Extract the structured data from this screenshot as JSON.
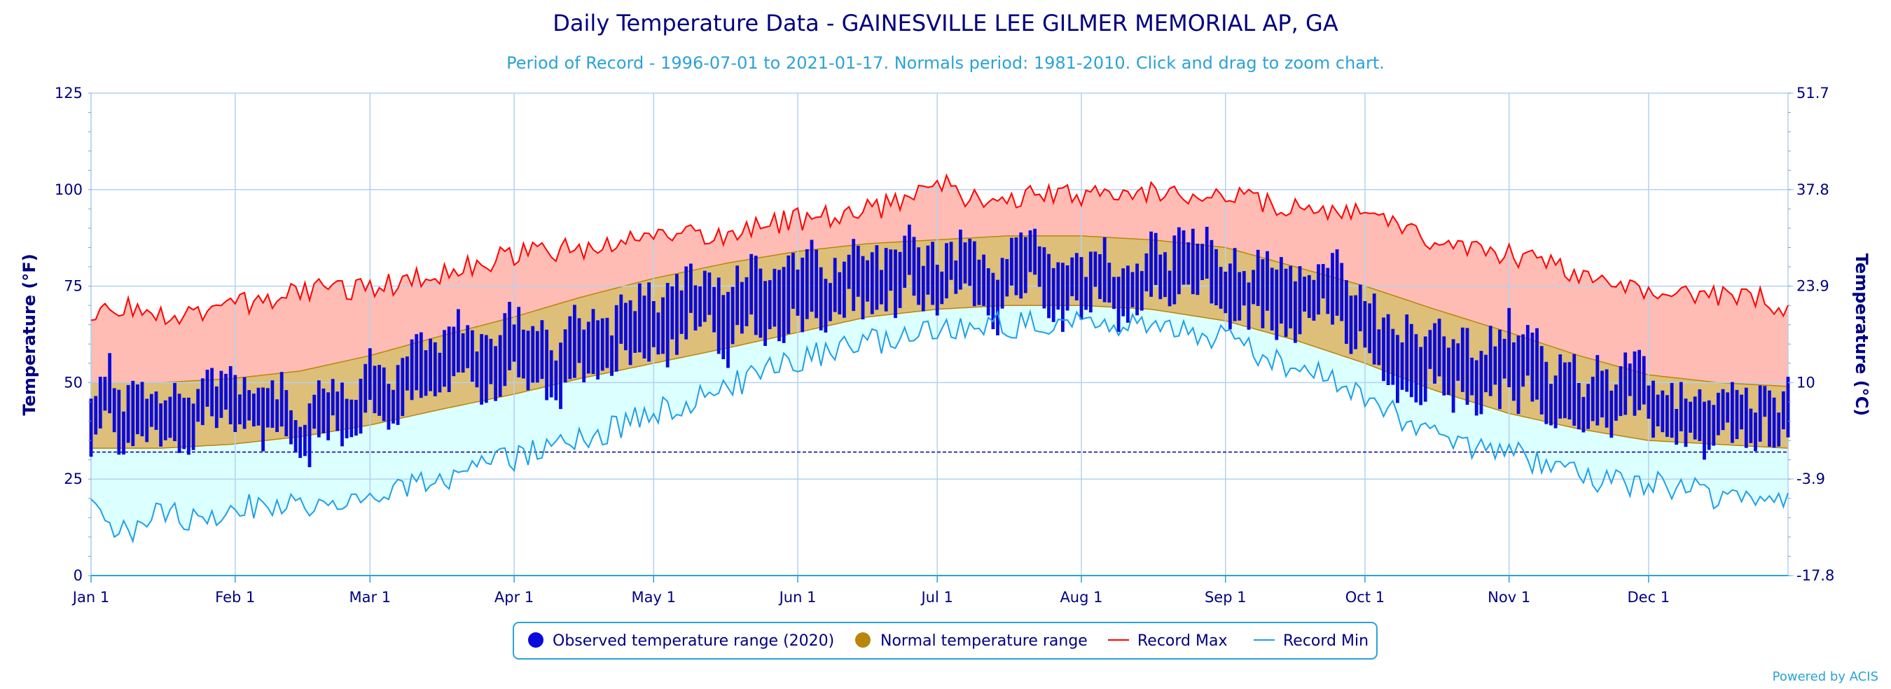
{
  "chart_data": {
    "type": "area",
    "title": "Daily Temperature Data - GAINESVILLE LEE GILMER MEMORIAL AP, GA",
    "subtitle": "Period of Record - 1996-07-01 to 2021-01-17. Normals period: 1981-2010. Click and drag to zoom chart.",
    "ylabel": "Temperature (°F)",
    "ylabel_right": "Temperature (°C)",
    "ylim": [
      0,
      125
    ],
    "yticks": [
      0,
      25,
      50,
      75,
      100,
      125
    ],
    "yticks_right": [
      "-17.8",
      "-3.9",
      "10",
      "23.9",
      "37.8",
      "51.7"
    ],
    "freezing_line": 32,
    "x_days": 366,
    "month_labels": [
      {
        "label": "Jan 1",
        "day": 0
      },
      {
        "label": "Feb 1",
        "day": 31
      },
      {
        "label": "Mar 1",
        "day": 60
      },
      {
        "label": "Apr 1",
        "day": 91
      },
      {
        "label": "May 1",
        "day": 121
      },
      {
        "label": "Jun 1",
        "day": 152
      },
      {
        "label": "Jul 1",
        "day": 182
      },
      {
        "label": "Aug 1",
        "day": 213
      },
      {
        "label": "Sep 1",
        "day": 244
      },
      {
        "label": "Oct 1",
        "day": 274
      },
      {
        "label": "Nov 1",
        "day": 305
      },
      {
        "label": "Dec 1",
        "day": 335
      }
    ],
    "grid": true,
    "legend_position": "bottom-center",
    "colors": {
      "observed": "#0a0adc",
      "normal_fill": "#ddbf7a",
      "normal_edge": "#b8860b",
      "record_max_line": "#ff0000",
      "record_max_fill": "#ffbcb4",
      "record_min_line": "#1ea0e6",
      "record_min_fill": "#dcffff",
      "grid": "#b4d2f0",
      "axis_text": "#000080",
      "subtitle": "#2aa2d8",
      "freezing": "#00008b"
    },
    "series": [
      {
        "name": "Record Max",
        "points": [
          [
            0,
            67
          ],
          [
            8,
            70
          ],
          [
            15,
            68
          ],
          [
            22,
            67
          ],
          [
            30,
            70
          ],
          [
            36,
            71
          ],
          [
            44,
            73
          ],
          [
            52,
            75
          ],
          [
            60,
            74
          ],
          [
            70,
            77
          ],
          [
            80,
            80
          ],
          [
            90,
            83
          ],
          [
            100,
            84
          ],
          [
            112,
            86
          ],
          [
            121,
            88
          ],
          [
            135,
            88
          ],
          [
            150,
            92
          ],
          [
            165,
            94
          ],
          [
            175,
            97
          ],
          [
            182,
            104
          ],
          [
            187,
            97
          ],
          [
            200,
            98
          ],
          [
            215,
            99
          ],
          [
            225,
            100
          ],
          [
            235,
            99
          ],
          [
            245,
            98
          ],
          [
            255,
            96
          ],
          [
            265,
            94
          ],
          [
            275,
            94
          ],
          [
            282,
            90
          ],
          [
            290,
            85
          ],
          [
            300,
            84
          ],
          [
            310,
            82
          ],
          [
            320,
            78
          ],
          [
            330,
            75
          ],
          [
            340,
            74
          ],
          [
            350,
            72
          ],
          [
            360,
            72
          ],
          [
            365,
            68
          ]
        ]
      },
      {
        "name": "Record Min",
        "points": [
          [
            0,
            18
          ],
          [
            8,
            10
          ],
          [
            15,
            17
          ],
          [
            22,
            14
          ],
          [
            30,
            17
          ],
          [
            36,
            18
          ],
          [
            44,
            18
          ],
          [
            52,
            20
          ],
          [
            60,
            21
          ],
          [
            70,
            23
          ],
          [
            80,
            27
          ],
          [
            90,
            30
          ],
          [
            100,
            34
          ],
          [
            112,
            38
          ],
          [
            121,
            42
          ],
          [
            135,
            48
          ],
          [
            150,
            55
          ],
          [
            165,
            60
          ],
          [
            175,
            62
          ],
          [
            182,
            64
          ],
          [
            195,
            65
          ],
          [
            215,
            65
          ],
          [
            230,
            64
          ],
          [
            245,
            61
          ],
          [
            255,
            55
          ],
          [
            265,
            52
          ],
          [
            275,
            46
          ],
          [
            285,
            38
          ],
          [
            295,
            34
          ],
          [
            305,
            32
          ],
          [
            315,
            28
          ],
          [
            325,
            24
          ],
          [
            335,
            24
          ],
          [
            345,
            22
          ],
          [
            355,
            19
          ],
          [
            365,
            18
          ]
        ]
      },
      {
        "name": "Normal High",
        "points": [
          [
            0,
            50
          ],
          [
            15,
            50
          ],
          [
            30,
            51
          ],
          [
            45,
            53
          ],
          [
            60,
            57
          ],
          [
            75,
            62
          ],
          [
            91,
            67
          ],
          [
            105,
            72
          ],
          [
            121,
            77
          ],
          [
            137,
            81
          ],
          [
            152,
            84
          ],
          [
            167,
            86
          ],
          [
            182,
            87
          ],
          [
            197,
            88
          ],
          [
            213,
            88
          ],
          [
            228,
            87
          ],
          [
            244,
            85
          ],
          [
            259,
            80
          ],
          [
            274,
            75
          ],
          [
            289,
            69
          ],
          [
            305,
            63
          ],
          [
            320,
            57
          ],
          [
            335,
            52
          ],
          [
            350,
            50
          ],
          [
            365,
            49
          ]
        ]
      },
      {
        "name": "Normal Low",
        "points": [
          [
            0,
            33
          ],
          [
            15,
            33
          ],
          [
            30,
            34
          ],
          [
            45,
            36
          ],
          [
            60,
            39
          ],
          [
            75,
            43
          ],
          [
            91,
            47
          ],
          [
            105,
            51
          ],
          [
            121,
            55
          ],
          [
            137,
            59
          ],
          [
            152,
            63
          ],
          [
            167,
            67
          ],
          [
            182,
            69
          ],
          [
            197,
            70
          ],
          [
            213,
            70
          ],
          [
            228,
            69
          ],
          [
            244,
            66
          ],
          [
            259,
            61
          ],
          [
            274,
            55
          ],
          [
            289,
            48
          ],
          [
            305,
            42
          ],
          [
            320,
            38
          ],
          [
            335,
            35
          ],
          [
            350,
            34
          ],
          [
            365,
            33
          ]
        ]
      },
      {
        "name": "Observed temperature range (2020)",
        "values_from": "normal_range_with_daily_variation"
      }
    ]
  },
  "legend": {
    "observed": "Observed temperature range (2020)",
    "normal": "Normal temperature range",
    "record_max": "Record Max",
    "record_min": "Record Min"
  },
  "credit": "Powered by ACIS"
}
